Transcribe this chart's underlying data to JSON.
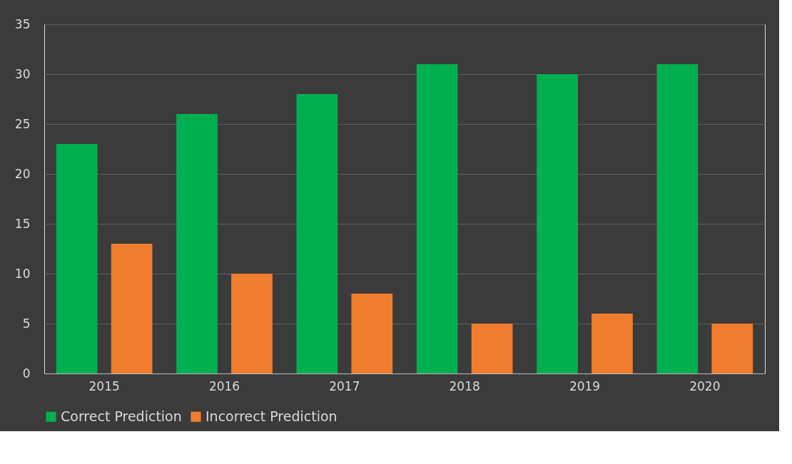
{
  "chart_data": {
    "type": "bar",
    "categories": [
      "2015",
      "2016",
      "2017",
      "2018",
      "2019",
      "2020"
    ],
    "series": [
      {
        "name": "Correct Prediction",
        "color": "#00b050",
        "values": [
          23,
          26,
          28,
          31,
          30,
          31
        ]
      },
      {
        "name": "Incorrect Prediction",
        "color": "#f07d2e",
        "values": [
          13,
          10,
          8,
          5,
          6,
          5
        ]
      }
    ],
    "ylim": [
      0,
      35
    ],
    "yticks": [
      0,
      5,
      10,
      15,
      20,
      25,
      30,
      35
    ],
    "grid": "y",
    "legend": "bottom"
  }
}
